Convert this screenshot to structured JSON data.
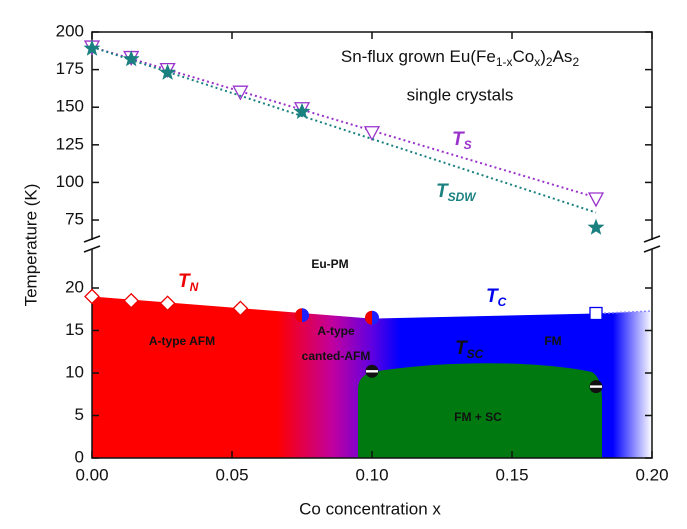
{
  "chart_data": [
    {
      "type": "scatter",
      "title": [
        "Sn-flux grown Eu(Fe",
        "1-x",
        "Co",
        "x",
        ")",
        "2",
        "As",
        "2"
      ],
      "subtitle": "single crystals",
      "xlim": [
        0,
        0.2
      ],
      "ylim": [
        60,
        200
      ],
      "yticks": [
        75,
        100,
        125,
        150,
        175,
        200
      ],
      "series": [
        {
          "label": [
            "T",
            "S"
          ],
          "color": "#9933cc",
          "marker": "triangle-down",
          "x": [
            0,
            0.014,
            0.027,
            0.053,
            0.075,
            0.1,
            0.18
          ],
          "values": [
            190,
            183,
            175,
            160,
            149,
            133,
            89
          ],
          "line_x": [
            0,
            0.18
          ],
          "line_values": [
            190,
            90
          ]
        },
        {
          "label": [
            "T",
            "SDW"
          ],
          "color": "#1a8080",
          "marker": "star",
          "x": [
            0,
            0.014,
            0.027,
            0.075,
            0.18
          ],
          "values": [
            189,
            182,
            173,
            147,
            70
          ],
          "line_x": [
            0,
            0.18
          ],
          "line_values": [
            190,
            80
          ]
        }
      ]
    },
    {
      "type": "scatter",
      "xlabel": "Co concentration x",
      "ylabel": "Temperature (K)",
      "xlim": [
        0,
        0.2
      ],
      "ylim": [
        0,
        23
      ],
      "xticks": [
        {
          "value": 0,
          "label": "0.00"
        },
        {
          "value": 0.05,
          "label": "0.05"
        },
        {
          "value": 0.1,
          "label": "0.10"
        },
        {
          "value": 0.15,
          "label": "0.15"
        },
        {
          "value": 0.2,
          "label": "0.20"
        }
      ],
      "yticks": [
        0,
        5,
        10,
        15,
        20
      ],
      "regions": [
        "Eu-PM",
        "A-type AFM",
        "A-type",
        "canted-AFM",
        "FM",
        "FM + SC"
      ],
      "series": [
        {
          "label": [
            "T",
            "N"
          ],
          "color": "#ee0000",
          "marker": "diamond",
          "x": [
            0,
            0.014,
            0.027,
            0.053
          ],
          "values": [
            19,
            18.5,
            18.2,
            17.6
          ]
        },
        {
          "color": "#ee0000",
          "marker": "half-circle",
          "x": [
            0.075,
            0.1
          ],
          "values": [
            16.8,
            16.5
          ]
        },
        {
          "label": [
            "T",
            "C"
          ],
          "color": "#0000ee",
          "marker": "square",
          "x": [
            0.18
          ],
          "values": [
            17
          ]
        },
        {
          "label": [
            "T",
            "SC"
          ],
          "color": "#111111",
          "marker": "sc-circle",
          "x": [
            0.1,
            0.18
          ],
          "values": [
            10.2,
            8.4
          ]
        }
      ]
    }
  ]
}
